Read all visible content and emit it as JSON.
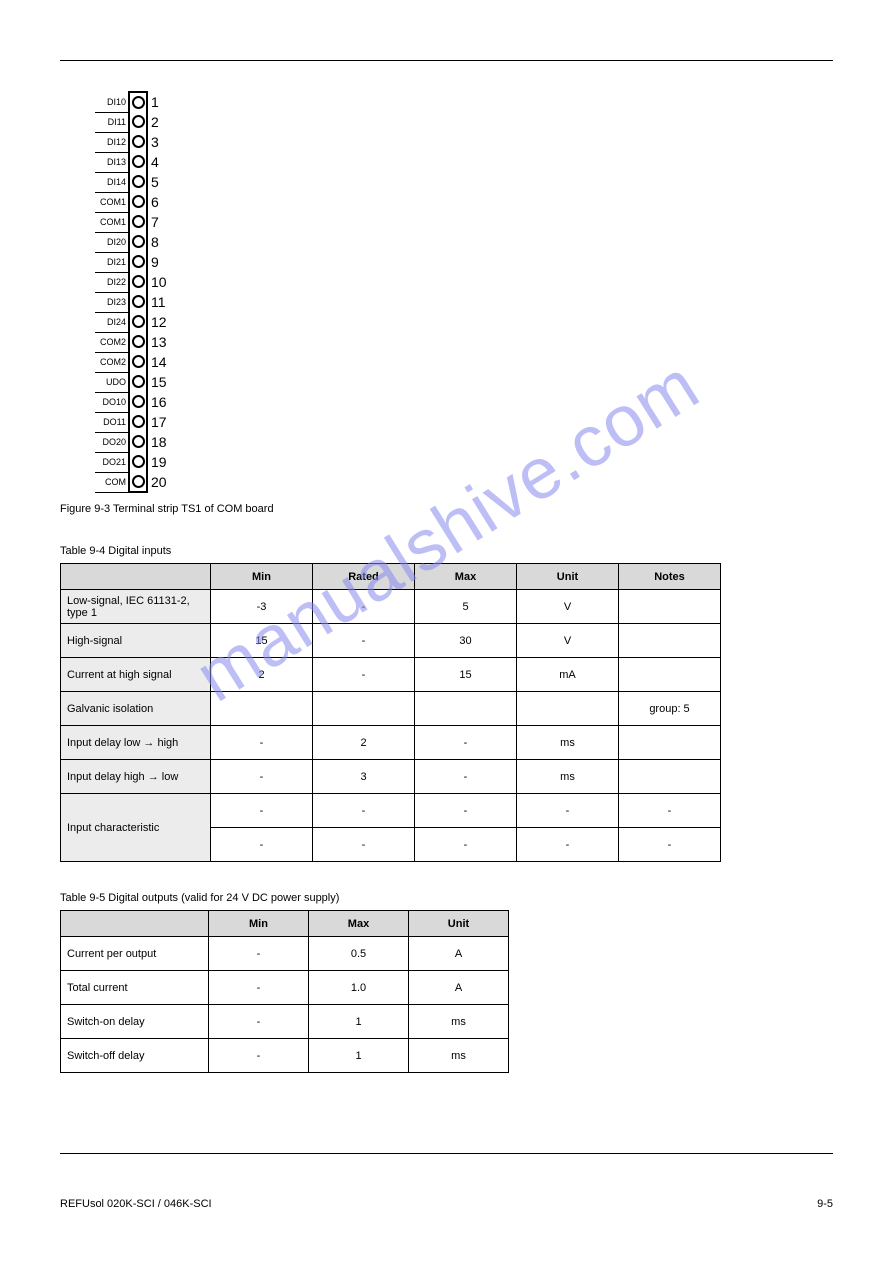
{
  "watermark": {
    "text": "manualshive.com",
    "color": "#8a8af0"
  },
  "pinout": {
    "caption": "Figure 9-3 Terminal strip TS1 of COM board",
    "pins": [
      {
        "label": "DI10",
        "num": "1"
      },
      {
        "label": "DI11",
        "num": "2"
      },
      {
        "label": "DI12",
        "num": "3"
      },
      {
        "label": "DI13",
        "num": "4"
      },
      {
        "label": "DI14",
        "num": "5"
      },
      {
        "label": "COM1",
        "num": "6"
      },
      {
        "label": "COM1",
        "num": "7"
      },
      {
        "label": "DI20",
        "num": "8"
      },
      {
        "label": "DI21",
        "num": "9"
      },
      {
        "label": "DI22",
        "num": "10"
      },
      {
        "label": "DI23",
        "num": "11"
      },
      {
        "label": "DI24",
        "num": "12"
      },
      {
        "label": "COM2",
        "num": "13"
      },
      {
        "label": "COM2",
        "num": "14"
      },
      {
        "label": "UDO",
        "num": "15"
      },
      {
        "label": "DO10",
        "num": "16"
      },
      {
        "label": "DO11",
        "num": "17"
      },
      {
        "label": "DO20",
        "num": "18"
      },
      {
        "label": "DO21",
        "num": "19"
      },
      {
        "label": "COM",
        "num": "20"
      }
    ]
  },
  "table1": {
    "caption": "Table 9-4 Digital inputs",
    "headers": [
      "",
      "Min",
      "Rated",
      "Max",
      "Unit",
      "Notes"
    ],
    "rows": [
      {
        "label": "Low-signal, IEC 61131-2, type 1",
        "cells": [
          "-3",
          "-",
          "5",
          "V",
          ""
        ]
      },
      {
        "label": "High-signal",
        "cells": [
          "15",
          "-",
          "30",
          "V",
          ""
        ]
      },
      {
        "label": "Current at high signal",
        "cells": [
          "2",
          "-",
          "15",
          "mA",
          ""
        ]
      },
      {
        "label": "Galvanic isolation",
        "cells": [
          "",
          "",
          "",
          "",
          "group: 5"
        ]
      },
      {
        "label": "Input delay low → high",
        "cells": [
          "-",
          "2",
          "-",
          "ms",
          ""
        ]
      },
      {
        "label": "Input delay high → low",
        "cells": [
          "-",
          "3",
          "-",
          "ms",
          ""
        ]
      },
      {
        "label": "Input characteristic",
        "cells": [
          "-",
          "-",
          "-",
          "-",
          "-"
        ],
        "rowspan": 2
      },
      {
        "cells": [
          "-",
          "-",
          "-",
          "-",
          "-"
        ]
      }
    ]
  },
  "table2": {
    "caption": "Table 9-5 Digital outputs (valid for 24 V DC power supply)",
    "headers": [
      "",
      "Min",
      "Max",
      "Unit"
    ],
    "rows": [
      {
        "label": "Current per output",
        "cells": [
          "-",
          "0.5",
          "A"
        ]
      },
      {
        "label": "Total current",
        "cells": [
          "-",
          "1.0",
          "A"
        ]
      },
      {
        "label": "Switch-on delay",
        "cells": [
          "-",
          "1",
          "ms"
        ]
      },
      {
        "label": "Switch-off delay",
        "cells": [
          "-",
          "1",
          "ms"
        ]
      }
    ]
  },
  "footer": {
    "left": "REFUsol 020K-SCI / 046K-SCI",
    "right": "9-5"
  }
}
